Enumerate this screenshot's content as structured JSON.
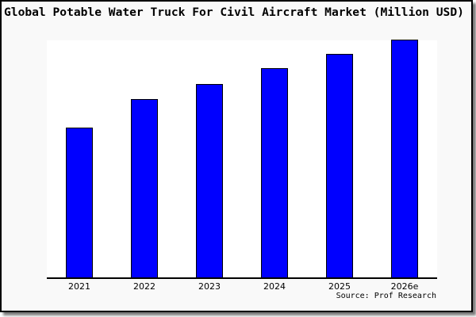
{
  "header": {
    "title": "Global Potable Water Truck For Civil Aircraft Market (Million USD)"
  },
  "footer": {
    "source_label": "Source: Prof Research"
  },
  "chart_data": {
    "type": "bar",
    "title": "Global Potable Water Truck For Civil Aircraft Market (Million USD)",
    "categories": [
      "2021",
      "2022",
      "2023",
      "2024",
      "2025",
      "2026e"
    ],
    "values": [
      63,
      75,
      81.5,
      88,
      94,
      100
    ],
    "value_basis": "relative index estimated from bar heights; no y-axis tick labels are shown (2026e bar = 100)",
    "xlabel": "",
    "ylabel": "",
    "ylim": [
      0,
      100
    ],
    "grid": false,
    "legend": false,
    "bar_color": "#0000ff",
    "bar_edge_color": "#000000"
  },
  "colors": {
    "frame_background": "#f9f9f9",
    "plot_background": "#ffffff",
    "border": "#000000",
    "shadow": "#7a7a7a",
    "text": "#000000"
  }
}
